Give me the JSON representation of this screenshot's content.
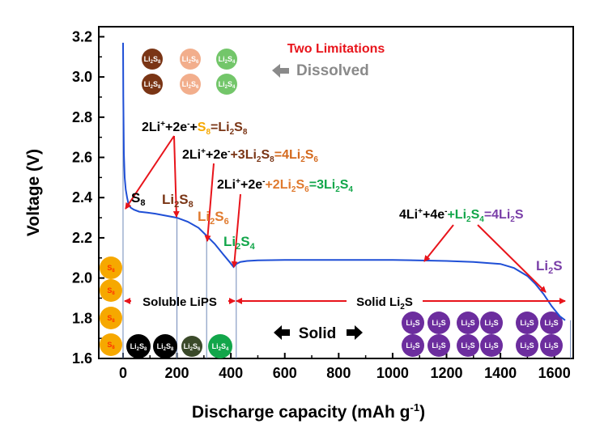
{
  "colors": {
    "curve": "#1f4fd6",
    "arrow": "#e8141b",
    "s8": "#f6a800",
    "s8_text": "#ff3300",
    "li2s8": "#7a3515",
    "li2s6": "#e07a2e",
    "li2s6_ball": "#f2ae8c",
    "li2s4": "#12a64a",
    "li2s4_ball": "#73c66a",
    "li2s": "#7a3fa8",
    "li2s_ball": "#6c2d9e",
    "dissolved": "#8a8a8a",
    "black": "#000000",
    "vline": "#6f88b8"
  },
  "chart_data": {
    "type": "line",
    "xlabel": "Discharge capacity (mAh g",
    "xlabel_sup": "-1",
    "xlabel_end": ")",
    "ylabel": "Voltage (V)",
    "xlim": [
      -90,
      1670
    ],
    "ylim": [
      1.6,
      3.25
    ],
    "x_ticks": [
      0,
      200,
      400,
      600,
      800,
      1000,
      1200,
      1400,
      1600
    ],
    "y_ticks": [
      1.6,
      1.8,
      2.0,
      2.2,
      2.4,
      2.6,
      2.8,
      3.0,
      3.2
    ],
    "series": [
      {
        "x": [
          0,
          1,
          3,
          6,
          10,
          15,
          20,
          28,
          40,
          60,
          90,
          120,
          160,
          200,
          240,
          280,
          310,
          340,
          370,
          395,
          410,
          420,
          435,
          460,
          500,
          600,
          800,
          1000,
          1200,
          1300,
          1400,
          1450,
          1500,
          1530,
          1560,
          1590,
          1620,
          1640
        ],
        "y": [
          3.17,
          2.9,
          2.62,
          2.5,
          2.44,
          2.4,
          2.37,
          2.35,
          2.34,
          2.33,
          2.325,
          2.32,
          2.31,
          2.3,
          2.28,
          2.25,
          2.21,
          2.17,
          2.12,
          2.08,
          2.055,
          2.07,
          2.08,
          2.085,
          2.088,
          2.09,
          2.09,
          2.09,
          2.085,
          2.08,
          2.07,
          2.05,
          2.01,
          1.97,
          1.92,
          1.86,
          1.81,
          1.79
        ]
      }
    ],
    "vlines": [
      0,
      200,
      310,
      420,
      1660
    ],
    "annotations": {
      "title": "Two Limitations",
      "dissolved": "Dissolved",
      "eq1": {
        "pre": "2Li",
        "p1": "+",
        "m1": "+2e",
        "p2": "-",
        "m2": "+",
        "s1": "S",
        "sub1": "8",
        "eq": "=Li",
        "sub2": "2",
        "s2": "S",
        "sub3": "8"
      },
      "eq2": {
        "pre": "2Li",
        "p1": "+",
        "m1": "+2e",
        "p2": "-",
        "m2": "+3Li",
        "sub1": "2",
        "s1": "S",
        "sub2": "8",
        "eq": "=4Li",
        "sub3": "2",
        "s2": "S",
        "sub4": "6"
      },
      "eq3": {
        "pre": "2Li",
        "p1": "+",
        "m1": "+2e",
        "p2": "-",
        "m2": "+2Li",
        "sub1": "2",
        "s1": "S",
        "sub2": "6",
        "eq": "=3Li",
        "sub3": "2",
        "s2": "S",
        "sub4": "4"
      },
      "eq4": {
        "pre": "4Li",
        "p1": "+",
        "m1": "+4e",
        "p2": "-",
        "m2": "+Li",
        "sub1": "2",
        "s1": "S",
        "sub2": "4",
        "eq": "=4Li",
        "sub3": "2",
        "s2": "S"
      },
      "lab_s8": {
        "a": "S",
        "b": "8"
      },
      "lab_li2s8": {
        "a": "Li",
        "b": "2",
        "c": "S",
        "d": "8"
      },
      "lab_li2s6": {
        "a": "Li",
        "b": "2",
        "c": "S",
        "d": "6"
      },
      "lab_li2s4": {
        "a": "Li",
        "b": "2",
        "c": "S",
        "d": "4"
      },
      "lab_li2s": {
        "a": "Li",
        "b": "2",
        "c": "S"
      },
      "soluble": "Soluble LiPS",
      "solid_li2s": "Solid Li",
      "solid_li2s_sub": "2",
      "solid_li2s_end": "S",
      "solid": "Solid",
      "ball_s8": "S",
      "ball_s8_sub": "8",
      "ball_li": "Li",
      "ball_2": "2",
      "ball_s": "S",
      "ball_sub8": "8",
      "ball_sub6": "6",
      "ball_sub4": "4"
    }
  }
}
